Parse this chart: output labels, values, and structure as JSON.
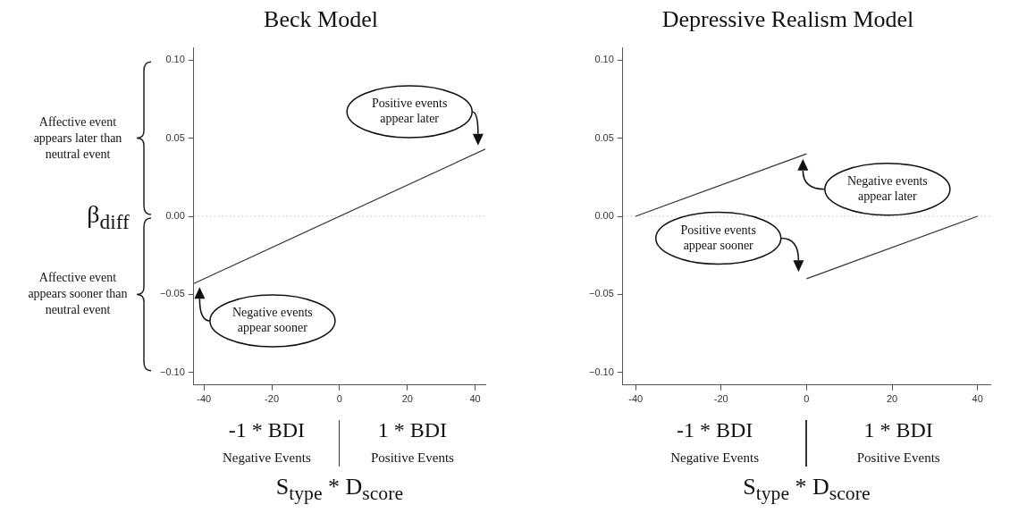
{
  "chart_data": [
    {
      "type": "line",
      "title": "Beck Model",
      "ylabel": "β$_{diff}$",
      "xlabel": "S$_{type}$ * D$_{score}$",
      "xlim": [
        -43,
        43
      ],
      "xticks": [
        -40,
        -20,
        0,
        20,
        40
      ],
      "ylim": [
        -0.108,
        0.108
      ],
      "yticks": [
        {
          "value": -0.1,
          "label": "−0.10"
        },
        {
          "value": -0.05,
          "label": "−0.05"
        },
        {
          "value": 0,
          "label": "0.00"
        },
        {
          "value": 0.05,
          "label": "0.05"
        },
        {
          "value": 0.1,
          "label": "0.10"
        }
      ],
      "series": [
        {
          "color": "#333333",
          "x": [
            -43,
            43
          ],
          "values": [
            -0.043,
            0.043
          ]
        }
      ],
      "ref_lines": [
        {
          "axis": "y",
          "value": 0,
          "color": "#bbbbbb",
          "line_style": "dotted"
        }
      ],
      "annotations": [
        "-1 * BDI",
        "Negative Events",
        "1 * BDI",
        "Positive Events",
        "Positive events appear later",
        "Negative events appear sooner",
        "Affective event appears later than neutral event",
        "Affective event appears sooner than neutral event"
      ],
      "grid": false,
      "legend": false,
      "marker": "none",
      "line_style": "solid"
    },
    {
      "type": "line",
      "title": "Depressive Realism Model",
      "xlabel": "S$_{type}$ * D$_{score}$",
      "xlim": [
        -43,
        43
      ],
      "xticks": [
        -40,
        -20,
        0,
        20,
        40
      ],
      "ylim": [
        -0.108,
        0.108
      ],
      "yticks": [
        {
          "value": -0.1,
          "label": "−0.10"
        },
        {
          "value": -0.05,
          "label": "−0.05"
        },
        {
          "value": 0,
          "label": "0.00"
        },
        {
          "value": 0.05,
          "label": "0.05"
        },
        {
          "value": 0.1,
          "label": "0.10"
        }
      ],
      "series": [
        {
          "color": "#333333",
          "x": [
            -40,
            0
          ],
          "values": [
            0,
            0.04
          ]
        },
        {
          "color": "#333333",
          "x": [
            0,
            40
          ],
          "values": [
            -0.04,
            0
          ]
        }
      ],
      "ref_lines": [
        {
          "axis": "y",
          "value": 0,
          "color": "#bbbbbb",
          "line_style": "dotted"
        }
      ],
      "annotations": [
        "-1 * BDI",
        "Negative Events",
        "1 * BDI",
        "Positive Events",
        "Negative events appear later",
        "Positive events appear sooner"
      ],
      "grid": false,
      "legend": false,
      "marker": "none",
      "line_style": "solid"
    }
  ]
}
